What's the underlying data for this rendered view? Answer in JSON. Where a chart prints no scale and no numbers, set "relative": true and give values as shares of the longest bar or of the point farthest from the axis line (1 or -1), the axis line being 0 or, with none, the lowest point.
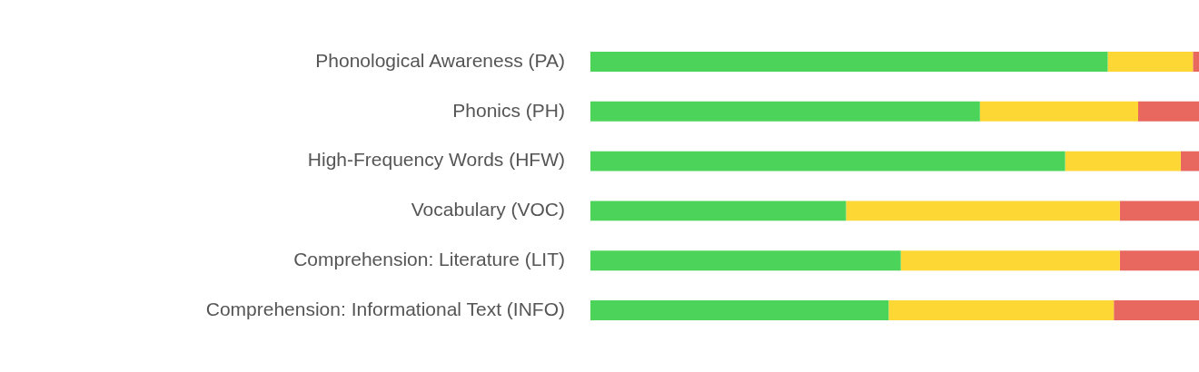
{
  "chart_data": {
    "type": "bar",
    "orientation": "horizontal",
    "stacked": true,
    "relative": true,
    "grid": false,
    "legend": false,
    "categories": [
      "Phonological Awareness (PA)",
      "Phonics (PH)",
      "High-Frequency Words (HFW)",
      "Vocabulary (VOC)",
      "Comprehension: Literature (LIT)",
      "Comprehension: Informational Text (INFO)"
    ],
    "series": [
      {
        "color": "#4cd45a",
        "values": [
          0.85,
          0.64,
          0.78,
          0.42,
          0.51,
          0.49
        ]
      },
      {
        "color": "#fdd835",
        "values": [
          0.14,
          0.26,
          0.19,
          0.45,
          0.36,
          0.37
        ]
      },
      {
        "color": "#e8675e",
        "values": [
          0.01,
          0.1,
          0.03,
          0.13,
          0.13,
          0.14
        ]
      }
    ]
  }
}
